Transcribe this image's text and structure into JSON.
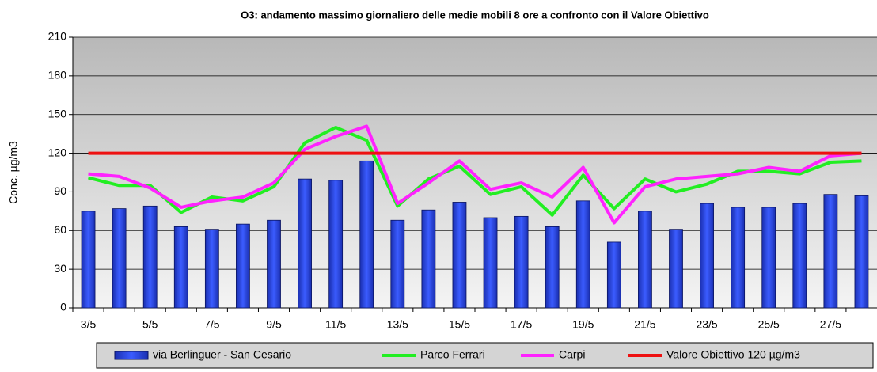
{
  "chart_data": {
    "type": "bar",
    "title": "O3: andamento massimo giornaliero delle medie mobili  8 ore a confronto con il Valore Obiettivo",
    "y_label": "Conc. µg/m3",
    "categories": [
      "3/5",
      null,
      "5/5",
      null,
      "7/5",
      null,
      "9/5",
      null,
      "11/5",
      null,
      "13/5",
      null,
      "15/5",
      null,
      "17/5",
      null,
      "19/5",
      null,
      "21/5",
      null,
      "23/5",
      null,
      "25/5",
      null,
      "27/5",
      null
    ],
    "series": [
      {
        "name": "via Berlinguer - San Cesario",
        "type": "bar",
        "color": "#3355ee",
        "values": [
          75,
          77,
          79,
          63,
          61,
          65,
          68,
          100,
          99,
          114,
          68,
          76,
          82,
          70,
          71,
          63,
          83,
          51,
          75,
          61,
          81,
          78,
          78,
          81,
          88,
          87
        ]
      },
      {
        "name": "Parco Ferrari",
        "type": "line",
        "color": "#22ee22",
        "values": [
          101,
          95,
          95,
          74,
          86,
          83,
          94,
          128,
          140,
          130,
          79,
          100,
          110,
          88,
          94,
          72,
          103,
          77,
          100,
          90,
          96,
          106,
          106,
          104,
          113,
          114
        ]
      },
      {
        "name": "Carpi",
        "type": "line",
        "color": "#ff22ff",
        "values": [
          104,
          102,
          93,
          78,
          83,
          86,
          97,
          123,
          133,
          141,
          81,
          97,
          114,
          92,
          97,
          86,
          109,
          66,
          94,
          100,
          102,
          104,
          109,
          106,
          118,
          120
        ]
      },
      {
        "name": "Valore Obiettivo 120 µg/m3",
        "type": "line",
        "color": "#ee1111",
        "values": [
          120,
          120,
          120,
          120,
          120,
          120,
          120,
          120,
          120,
          120,
          120,
          120,
          120,
          120,
          120,
          120,
          120,
          120,
          120,
          120,
          120,
          120,
          120,
          120,
          120,
          120
        ]
      }
    ],
    "ylim": [
      0,
      210
    ],
    "yticks": [
      0,
      30,
      60,
      90,
      120,
      150,
      180,
      210
    ],
    "grid": true,
    "legend": "bottom"
  }
}
